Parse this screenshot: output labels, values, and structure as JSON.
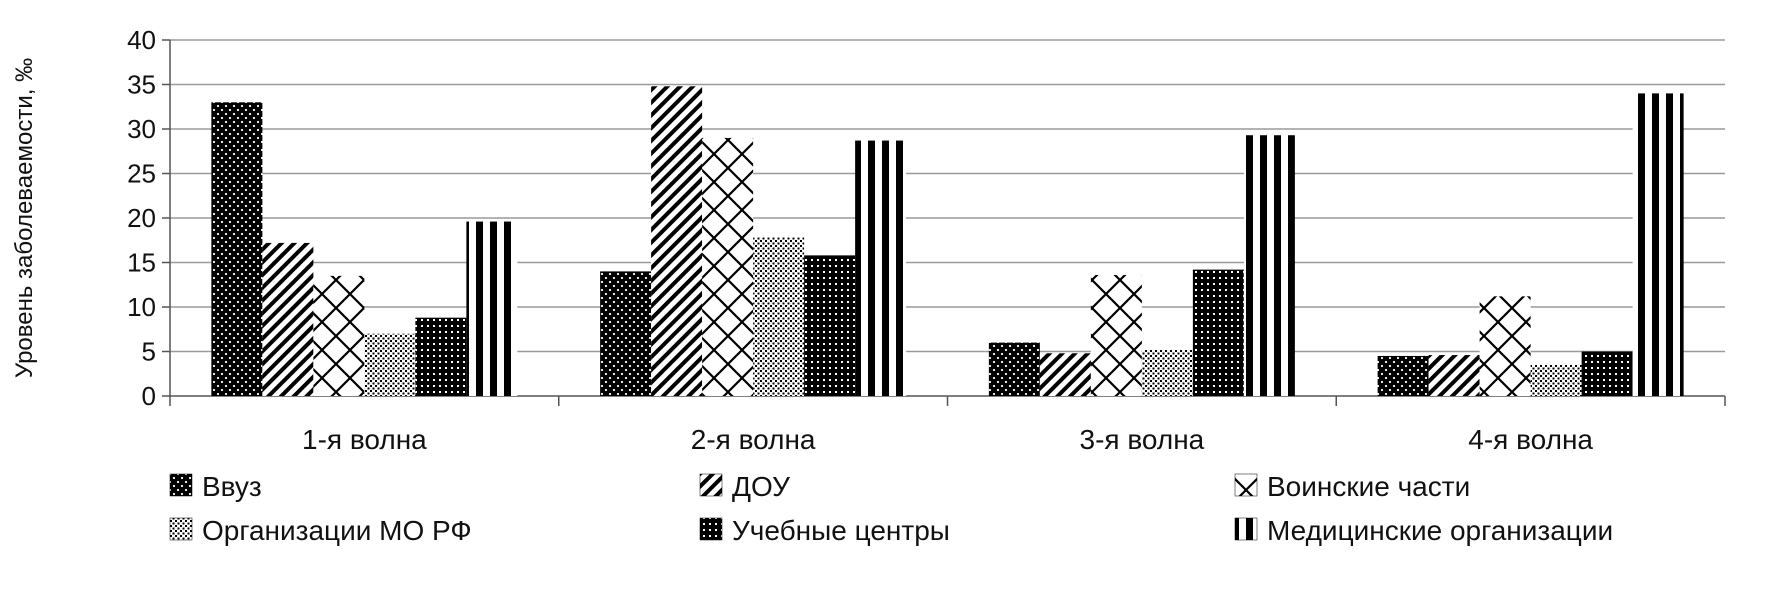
{
  "chart_data": {
    "type": "bar",
    "ylabel": "Уровень заболеваемости, ‰",
    "ylim": [
      0,
      40
    ],
    "yticks": [
      0,
      5,
      10,
      15,
      20,
      25,
      30,
      35,
      40
    ],
    "grid": true,
    "legend_position": "bottom",
    "categories": [
      "1-я волна",
      "2-я волна",
      "3-я волна",
      "4-я волна"
    ],
    "series": [
      {
        "name": "Ввуз",
        "pattern": "dots-dark",
        "values": [
          33.0,
          14.0,
          6.0,
          4.5
        ]
      },
      {
        "name": "ДОУ",
        "pattern": "diagonal",
        "values": [
          17.2,
          34.8,
          4.8,
          4.6
        ]
      },
      {
        "name": "Воинские части",
        "pattern": "chevron",
        "values": [
          13.5,
          29.0,
          13.6,
          11.2
        ]
      },
      {
        "name": "Организации МО РФ",
        "pattern": "dots-light",
        "values": [
          7.0,
          17.8,
          5.2,
          3.5
        ]
      },
      {
        "name": "Учебные центры",
        "pattern": "grid-dark",
        "values": [
          8.8,
          15.8,
          14.2,
          5.0
        ]
      },
      {
        "name": "Медицинские организации",
        "pattern": "vertical",
        "values": [
          19.6,
          28.7,
          29.3,
          34.0
        ]
      }
    ]
  }
}
